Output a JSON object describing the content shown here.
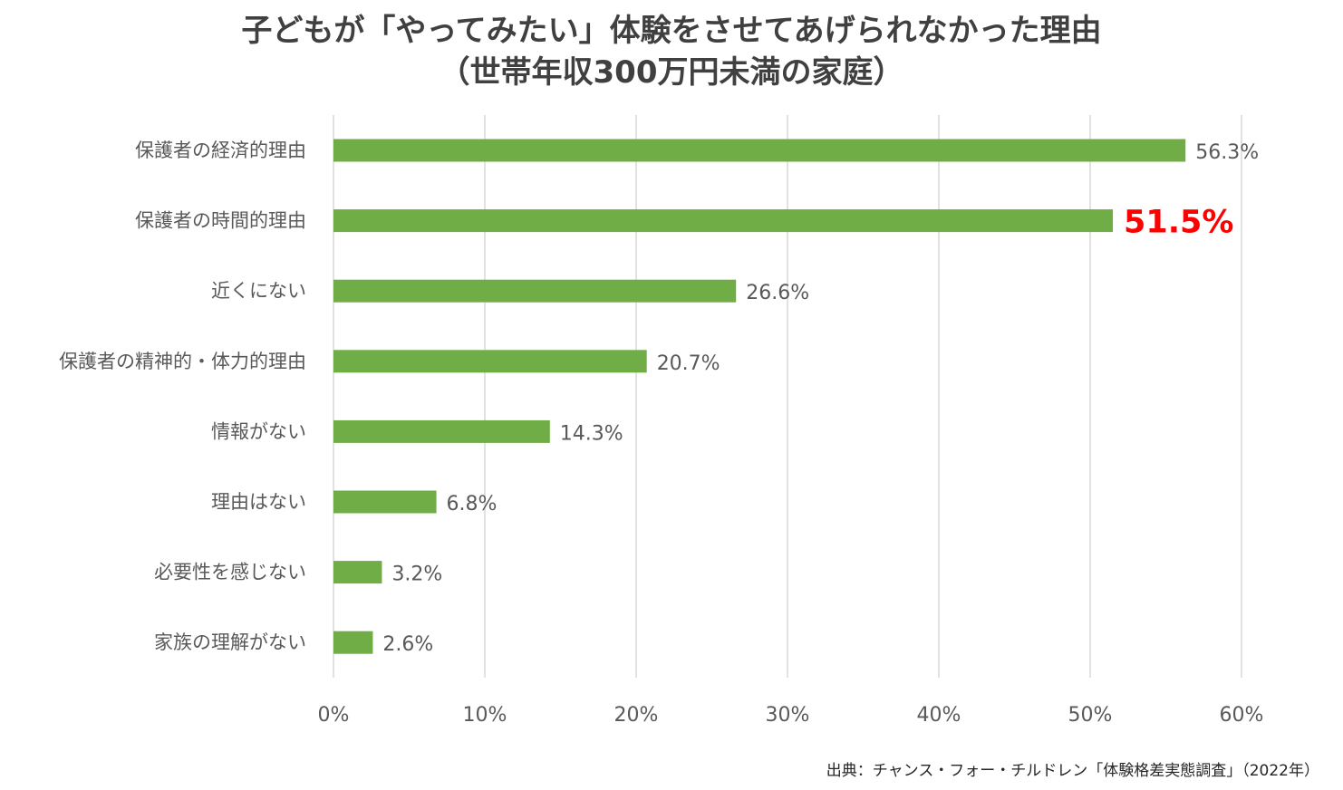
{
  "chart_data": {
    "type": "bar",
    "orientation": "horizontal",
    "title": "子どもが「やってみたい」体験をさせてあげられなかった理由",
    "subtitle": "（世帯年収300万円未満の家庭）",
    "categories": [
      "保護者の経済的理由",
      "保護者の時間的理由",
      "近くにない",
      "保護者の精神的・体力的理由",
      "情報がない",
      "理由はない",
      "必要性を感じない",
      "家族の理解がない"
    ],
    "values": [
      56.3,
      51.5,
      26.6,
      20.7,
      14.3,
      6.8,
      3.2,
      2.6
    ],
    "value_labels": [
      "56.3%",
      "51.5%",
      "26.6%",
      "20.7%",
      "14.3%",
      "6.8%",
      "3.2%",
      "2.6%"
    ],
    "highlight_index": 1,
    "xlim": [
      0,
      60
    ],
    "x_ticks": [
      0,
      10,
      20,
      30,
      40,
      50,
      60
    ],
    "x_tick_labels": [
      "0%",
      "10%",
      "20%",
      "30%",
      "40%",
      "50%",
      "60%"
    ],
    "xlabel": "",
    "ylabel": "",
    "grid": "vertical",
    "legend": "none",
    "colors": {
      "bar": "#70AD47",
      "highlight_label": "#FF0000",
      "grid": "#D9D9D9",
      "text": "#595959"
    }
  },
  "source": "出典：チャンス・フォー・チルドレン「体験格差実態調査」（2022年）"
}
